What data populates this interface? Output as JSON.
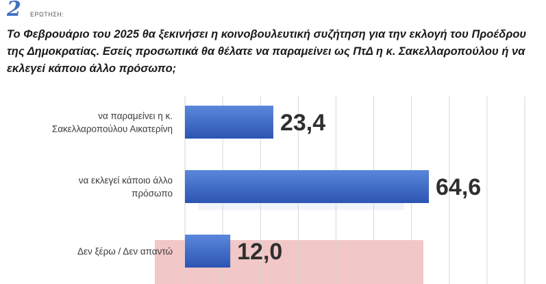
{
  "header": {
    "question_number": "2",
    "question_label": "ΕΡΩΤΗΣΗ:",
    "question_text": "Το Φεβρουάριο του 2025 θα ξεκινήσει η κοινοβουλευτική συζήτηση για την εκλογή του Προέδρου της Δημοκρατίας. Εσείς προσωπικά θα θέλατε να παραμείνει ως ΠτΔ η κ. Σακελλαροπούλου ή να εκλεγεί κάποιο άλλο πρόσωπο;"
  },
  "chart_data": {
    "type": "bar",
    "orientation": "horizontal",
    "categories": [
      [
        "να παραμείνει η κ.",
        "Σακελλαροπούλου Αικατερίνη"
      ],
      [
        "να εκλεγεί κάποιο άλλο",
        "πρόσωπο"
      ],
      [
        "Δεν ξέρω / Δεν απαντώ"
      ]
    ],
    "values": [
      23.4,
      64.6,
      12.0
    ],
    "value_labels": [
      "23,4",
      "64,6",
      "12,0"
    ],
    "xlim": [
      0,
      90
    ],
    "grid": true,
    "colors": {
      "bar_top": "#5a87db",
      "bar_bottom": "#2c55b2",
      "grid": "#d6d6d6",
      "watermark": "#f2c7c7"
    }
  }
}
